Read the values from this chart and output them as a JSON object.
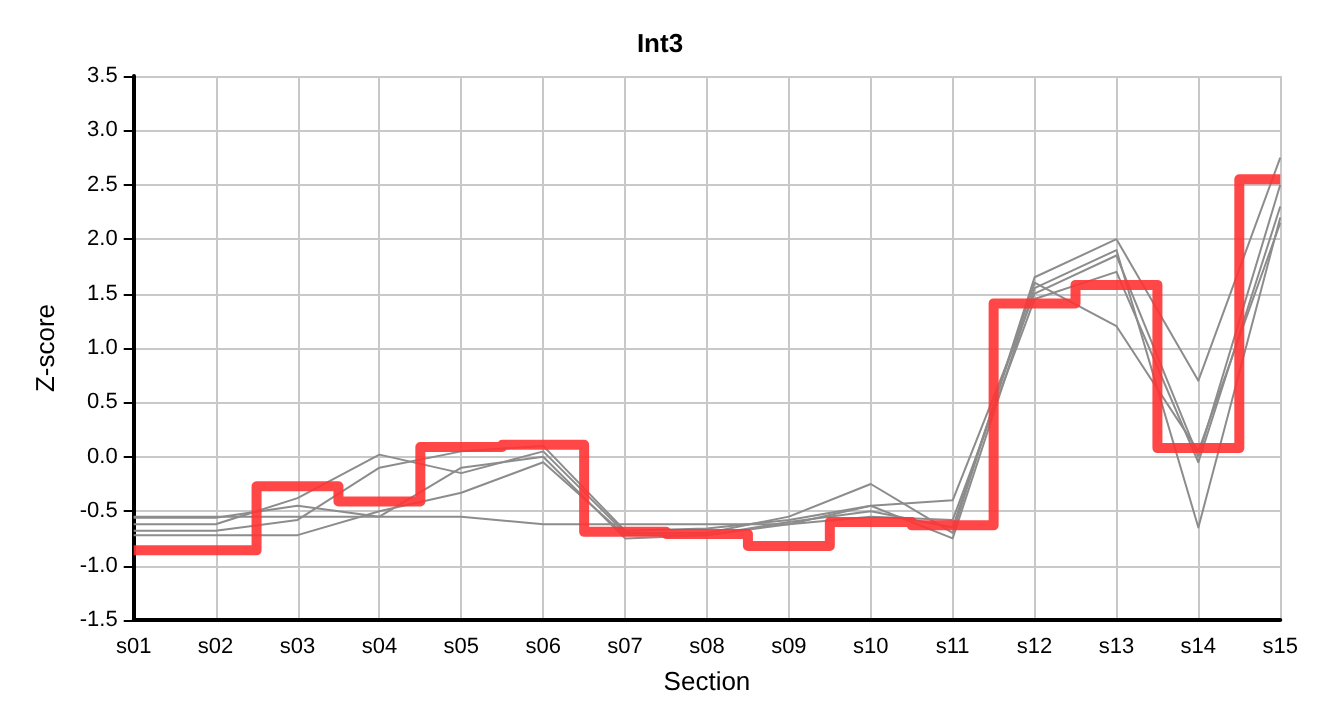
{
  "chart_data": {
    "type": "line",
    "title": "Int3",
    "xlabel": "Section",
    "ylabel": "Z-score",
    "categories": [
      "s01",
      "s02",
      "s03",
      "s04",
      "s05",
      "s06",
      "s07",
      "s08",
      "s09",
      "s10",
      "s11",
      "s12",
      "s13",
      "s14",
      "s15"
    ],
    "ylim": [
      -1.5,
      3.5
    ],
    "yticks": [
      {
        "value": -1.5,
        "label": "-1.5"
      },
      {
        "value": -1,
        "label": "-1.0"
      },
      {
        "value": -0.5,
        "label": "-0.5"
      },
      {
        "value": 0,
        "label": "0.0"
      },
      {
        "value": 0.5,
        "label": "0.5"
      },
      {
        "value": 1,
        "label": "1.0"
      },
      {
        "value": 1.5,
        "label": "1.5"
      },
      {
        "value": 2,
        "label": "2.0"
      },
      {
        "value": 2.5,
        "label": "2.5"
      },
      {
        "value": 3,
        "label": "3.0"
      },
      {
        "value": 3.5,
        "label": "3.5"
      }
    ],
    "grid": true,
    "marker": "none",
    "line_style": "solid",
    "series": [
      {
        "color": "#8c8c8c",
        "values": [
          -0.56,
          -0.56,
          -0.45,
          -0.55,
          -0.1,
          0.0,
          -0.75,
          -0.72,
          -0.62,
          -0.45,
          -0.75,
          1.55,
          1.9,
          -0.65,
          2.2
        ]
      },
      {
        "color": "#8c8c8c",
        "values": [
          -0.62,
          -0.62,
          -0.38,
          0.02,
          -0.15,
          0.05,
          -0.7,
          -0.7,
          -0.55,
          -0.25,
          -0.7,
          1.65,
          2.0,
          0.7,
          2.75
        ]
      },
      {
        "color": "#8c8c8c",
        "values": [
          -0.68,
          -0.68,
          -0.58,
          -0.1,
          0.05,
          0.1,
          -0.68,
          -0.66,
          -0.58,
          -0.45,
          -0.4,
          1.5,
          1.85,
          0.0,
          2.5
        ]
      },
      {
        "color": "#8c8c8c",
        "values": [
          -0.72,
          -0.72,
          -0.72,
          -0.5,
          -0.33,
          -0.05,
          -0.72,
          -0.72,
          -0.6,
          -0.5,
          -0.65,
          1.6,
          1.2,
          0.05,
          2.15
        ]
      },
      {
        "color": "#8c8c8c",
        "values": [
          -0.55,
          -0.55,
          -0.55,
          -0.55,
          -0.55,
          -0.62,
          -0.62,
          -0.62,
          -0.62,
          -0.55,
          -0.58,
          1.45,
          1.7,
          -0.05,
          2.3
        ]
      },
      {
        "type": "step",
        "color": "#ff3333",
        "values": [
          -0.86,
          -0.86,
          -0.27,
          -0.41,
          0.09,
          0.11,
          -0.69,
          -0.71,
          -0.82,
          -0.6,
          -0.63,
          1.41,
          1.58,
          0.08,
          2.55
        ]
      }
    ]
  }
}
